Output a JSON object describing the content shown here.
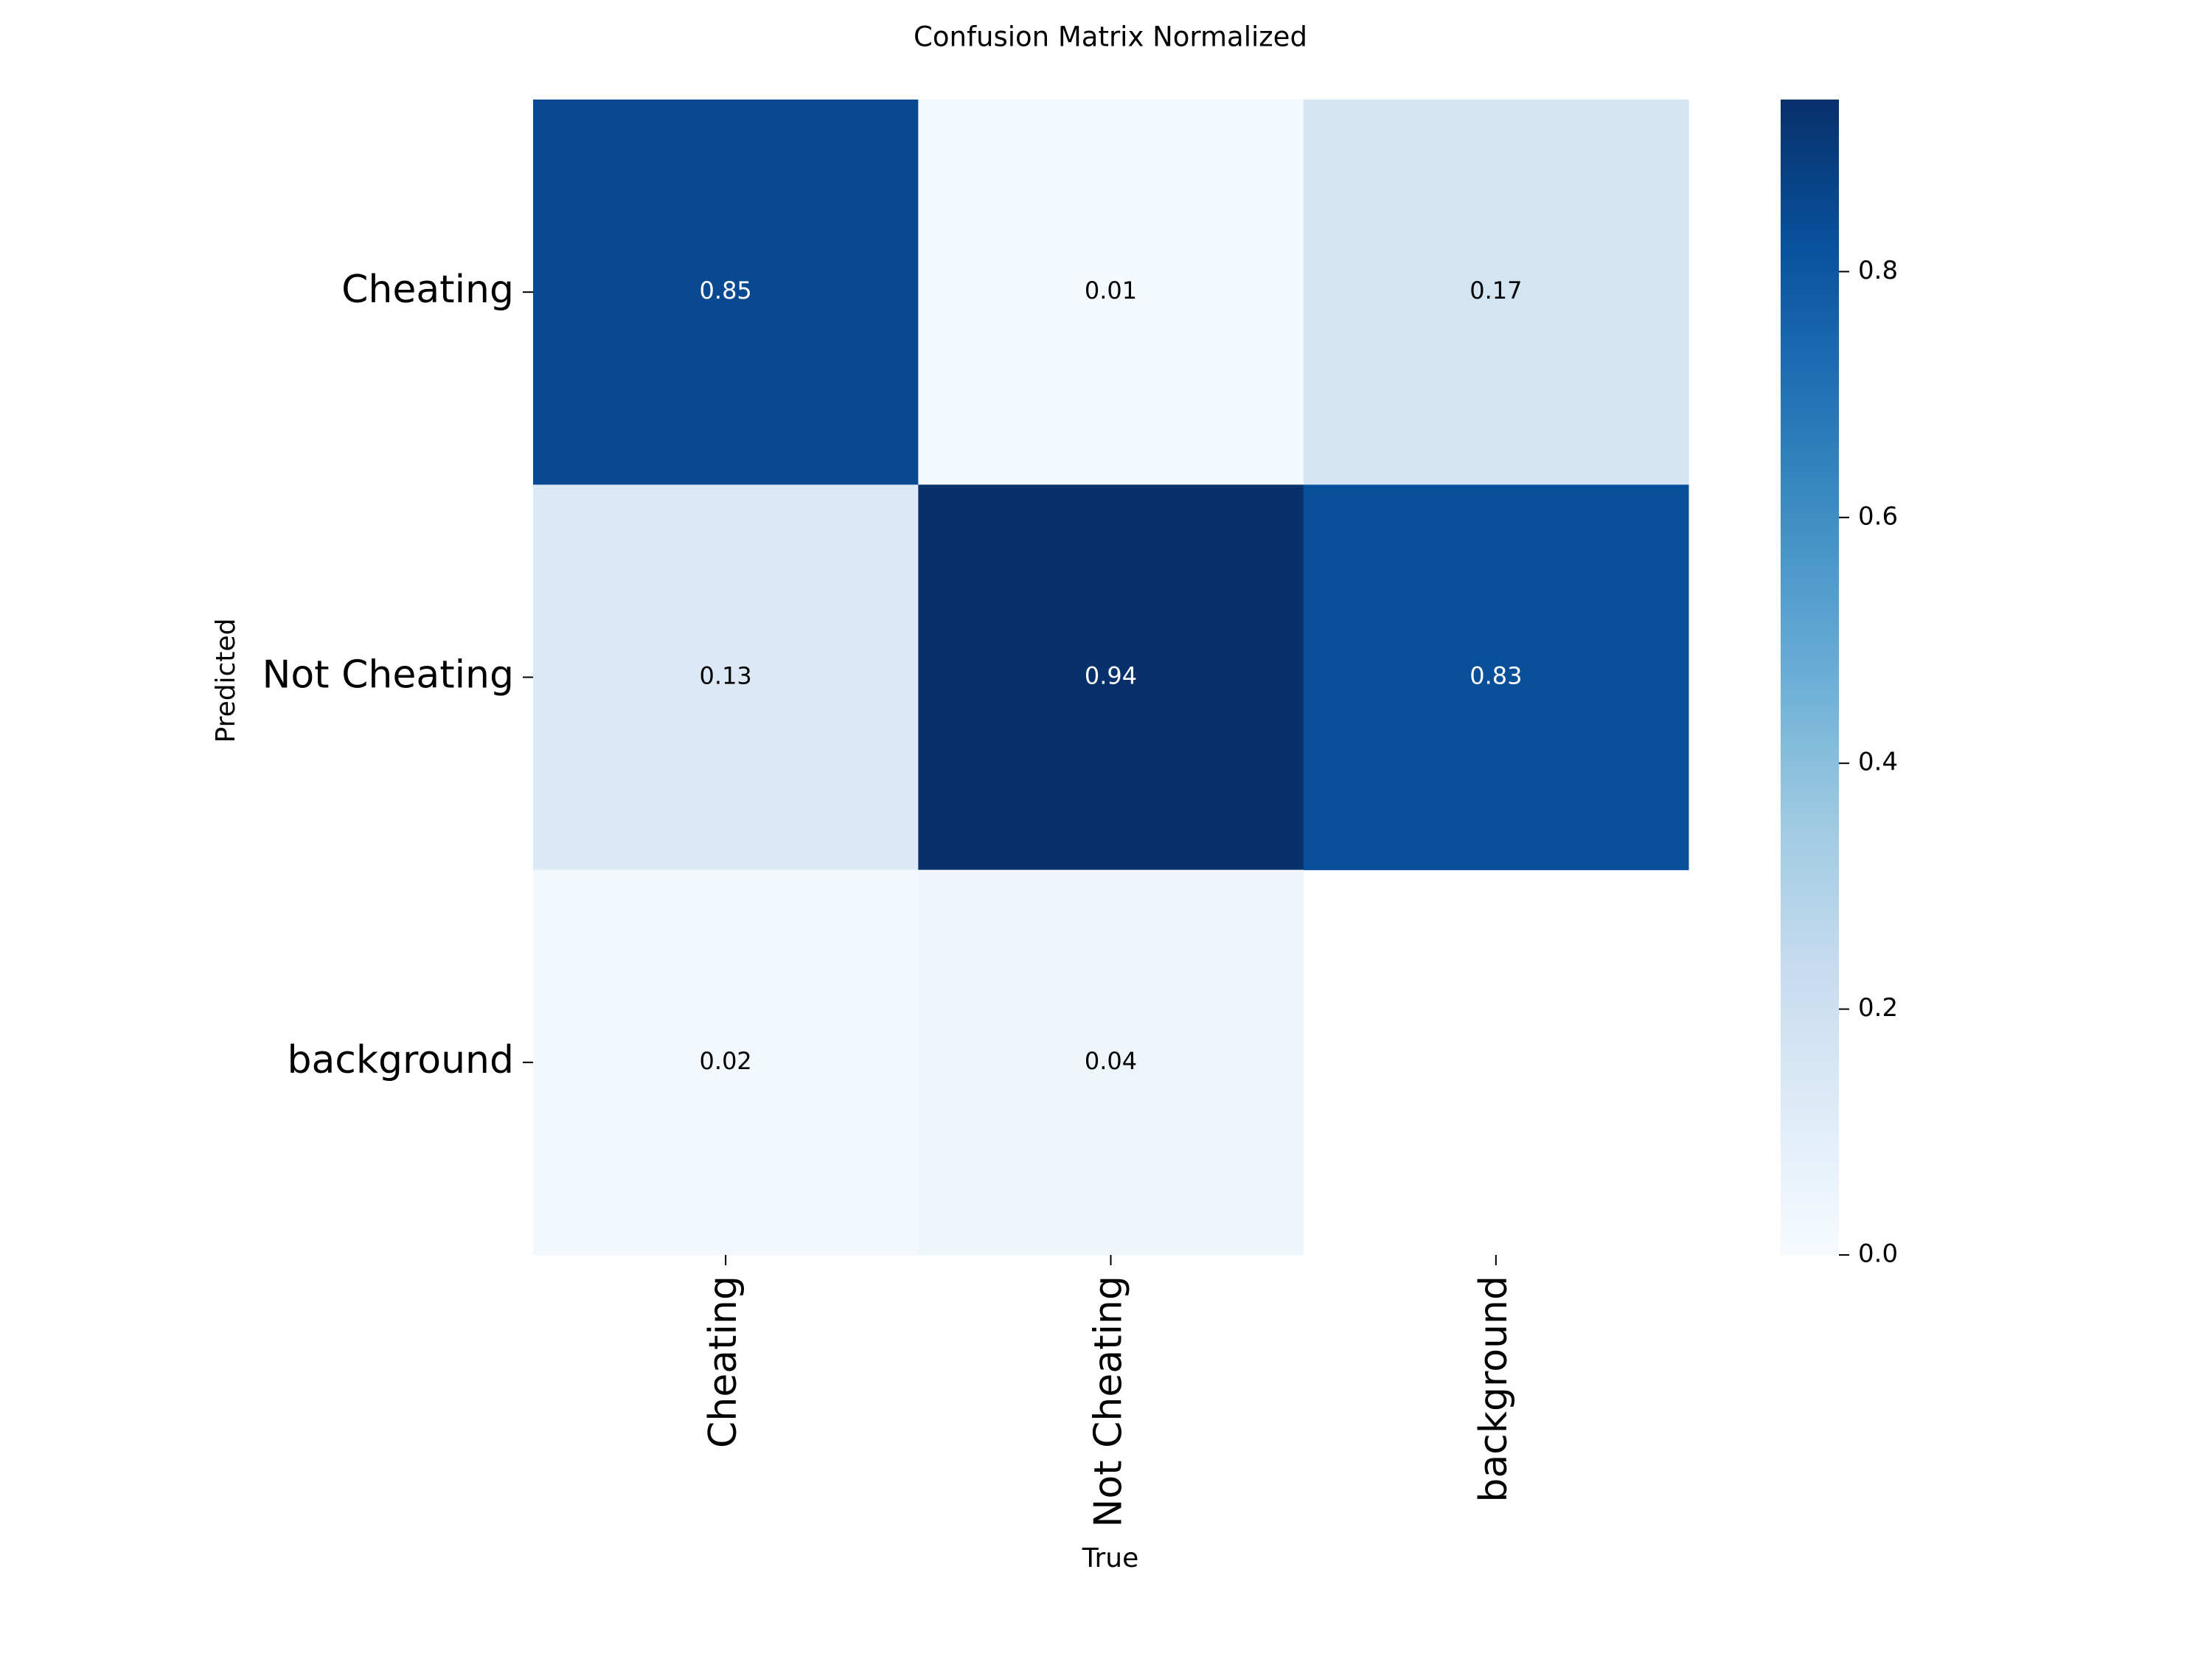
{
  "chart_data": {
    "type": "heatmap",
    "title": "Confusion Matrix Normalized",
    "x_label": "True",
    "y_label": "Predicted",
    "x_categories": [
      "Cheating",
      "Not Cheating",
      "background"
    ],
    "y_categories": [
      "Cheating",
      "Not Cheating",
      "background"
    ],
    "z": [
      [
        0.85,
        0.01,
        0.17
      ],
      [
        0.13,
        0.94,
        0.83
      ],
      [
        0.02,
        0.04,
        null
      ]
    ],
    "colors": [
      "#f7fbff",
      "#deebf7",
      "#c6dbef",
      "#9ecae1",
      "#6baed6",
      "#4292c6",
      "#2171b5",
      "#08519c",
      "#08306b"
    ],
    "colorbar_lim": [
      0,
      0.94
    ],
    "colorbar_ticks": [
      {
        "value": 0,
        "label": "0.0"
      },
      0.2,
      0.4,
      0.6,
      0.8
    ]
  }
}
